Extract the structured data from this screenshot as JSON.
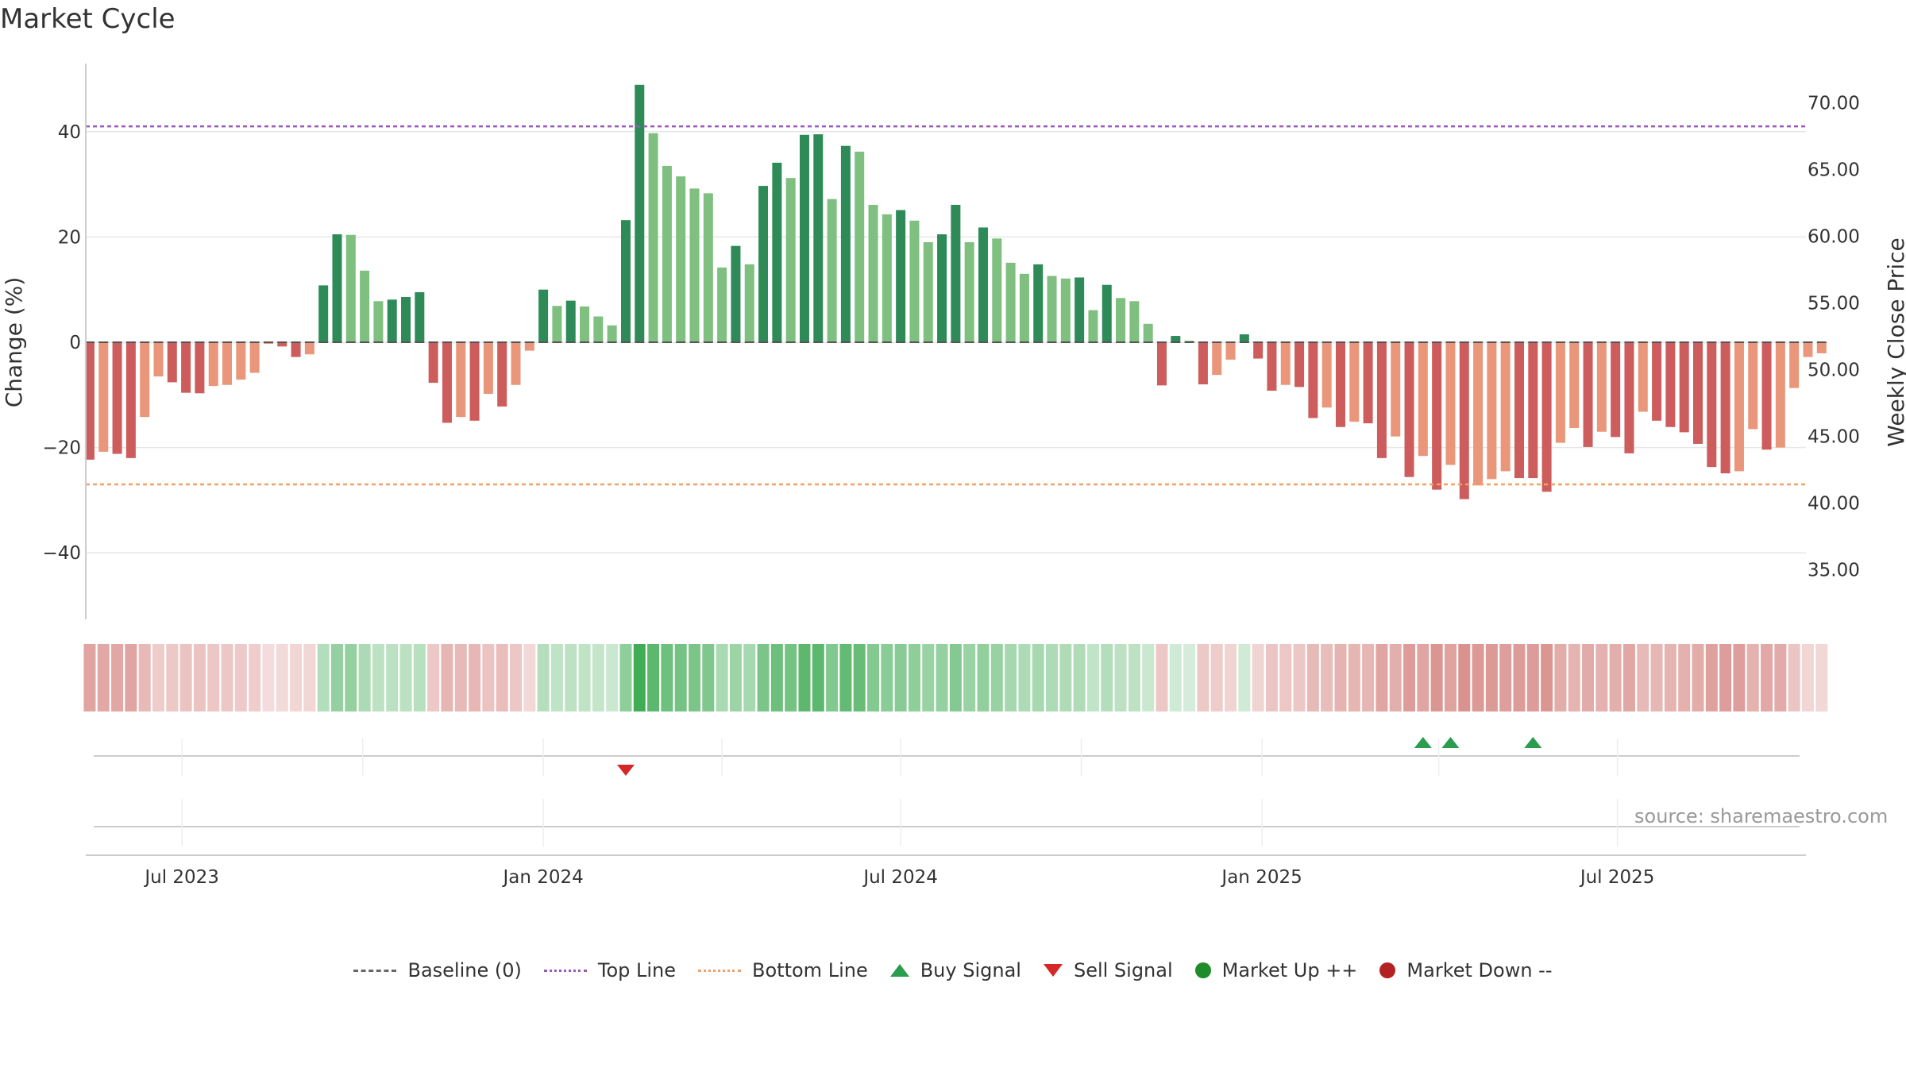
{
  "title": "Market Cycle",
  "source": "source: sharemaestro.com",
  "colors": {
    "pos_dark": "#2e8b57",
    "pos_light": "#7fbf7f",
    "neg_dark": "#cd5c5c",
    "neg_light": "#e9967a",
    "top_line": "#9b59b6",
    "bottom_line": "#f0a068",
    "buy": "#2a9d4f",
    "sell": "#d62728"
  },
  "legend": [
    {
      "key": "baseline",
      "label": "Baseline (0)",
      "icon": "dashed-line-icon"
    },
    {
      "key": "top",
      "label": "Top Line",
      "icon": "dotted-line-icon"
    },
    {
      "key": "bottom",
      "label": "Bottom Line",
      "icon": "dotted-line-icon"
    },
    {
      "key": "buy",
      "label": "Buy Signal",
      "icon": "triangle-up-icon"
    },
    {
      "key": "sell",
      "label": "Sell Signal",
      "icon": "triangle-down-icon"
    },
    {
      "key": "up",
      "label": "Market Up ++",
      "icon": "circle-icon"
    },
    {
      "key": "down",
      "label": "Market Down --",
      "icon": "circle-icon"
    }
  ],
  "chart_data": {
    "type": "bar",
    "title": "Market Cycle",
    "ylabel": "Change (%)",
    "y2label": "Weekly Close Price",
    "ylim": [
      -52,
      53
    ],
    "yticks": [
      -40,
      -20,
      0,
      20,
      40
    ],
    "ytick_labels": [
      "−40",
      "−20",
      "0",
      "20",
      "40"
    ],
    "y2ticks": [
      35,
      40,
      45,
      50,
      55,
      60,
      65,
      70
    ],
    "y2tick_labels": [
      "35.00",
      "40.00",
      "45.00",
      "50.00",
      "55.00",
      "60.00",
      "65.00",
      "70.00"
    ],
    "y2lim": [
      31.2,
      72.5
    ],
    "xlim": [
      "2023-05-13",
      "2025-10-05"
    ],
    "xticks": [
      {
        "date": "2023-07-01",
        "label": "Jul 2023"
      },
      {
        "date": "2024-01-01",
        "label": "Jan 2024"
      },
      {
        "date": "2024-07-01",
        "label": "Jul 2024"
      },
      {
        "date": "2025-01-01",
        "label": "Jan 2025"
      },
      {
        "date": "2025-07-01",
        "label": "Jul 2025"
      }
    ],
    "minor_ticks": [
      "2023-10-01",
      "2024-04-01",
      "2024-10-01",
      "2025-04-01"
    ],
    "top_line": 41,
    "bottom_line": -27,
    "start_date": "2023-05-15",
    "week_step_days": 7,
    "values": [
      -22.3,
      -20.8,
      -21.2,
      -22,
      -14.2,
      -6.5,
      -7.6,
      -9.6,
      -9.7,
      -8.3,
      -8.1,
      -7.1,
      -5.8,
      -0.3,
      -0.8,
      -2.8,
      -2.3,
      10.8,
      20.5,
      20.4,
      13.6,
      7.8,
      8.1,
      8.6,
      9.5,
      -7.7,
      -15.3,
      -14.2,
      -14.9,
      -9.8,
      -12.2,
      -8.1,
      -1.6,
      10,
      6.9,
      7.9,
      6.8,
      4.9,
      3.2,
      23.2,
      48.9,
      39.7,
      33.5,
      31.5,
      29.2,
      28.3,
      14.2,
      18.3,
      14.8,
      29.7,
      34.1,
      31.2,
      39.4,
      39.5,
      27.2,
      37.3,
      36.2,
      26.1,
      24.3,
      25.1,
      23.1,
      19,
      20.5,
      26.1,
      19,
      21.8,
      19.7,
      15.1,
      13,
      14.8,
      12.6,
      12.1,
      12.3,
      6.1,
      10.9,
      8.4,
      7.8,
      3.5,
      -8.2,
      1.2,
      0.3,
      -8,
      -6.2,
      -3.3,
      1.5,
      -3.1,
      -9.2,
      -8.1,
      -8.5,
      -14.4,
      -12.4,
      -16.1,
      -15.1,
      -15.4,
      -22,
      -17.9,
      -25.6,
      -21.6,
      -28,
      -23.3,
      -29.8,
      -27.2,
      -26,
      -24.5,
      -25.8,
      -25.8,
      -28.4,
      -19.1,
      -16.3,
      -19.9,
      -17,
      -18,
      -21.1,
      -13.2,
      -14.9,
      -16.1,
      -17.1,
      -19.3,
      -23.7,
      -24.9,
      -24.5,
      -16.5,
      -20.4,
      -20,
      -8.7,
      -2.8,
      -2.1
    ],
    "heat_band": "Intensity shown by cell colour per week (green = up, red = down)",
    "signals": [
      {
        "date": "2024-02-12",
        "type": "sell"
      },
      {
        "date": "2025-03-24",
        "type": "buy"
      },
      {
        "date": "2025-04-07",
        "type": "buy"
      },
      {
        "date": "2025-05-19",
        "type": "buy"
      }
    ]
  }
}
